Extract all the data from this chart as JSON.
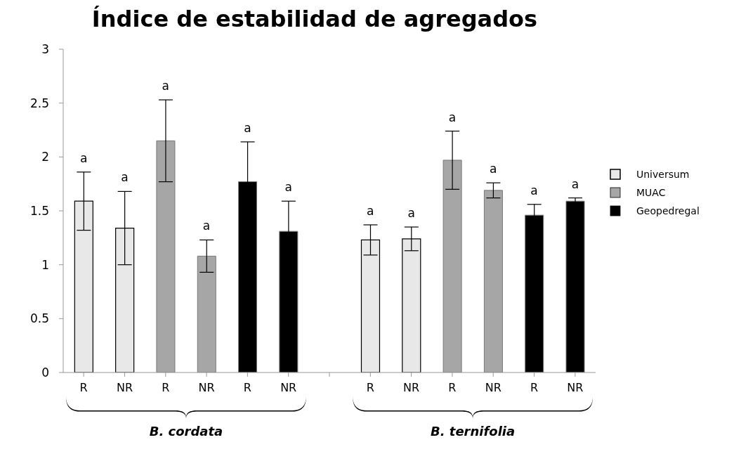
{
  "chart_data": {
    "type": "bar",
    "title": "Índice de estabilidad de agregados",
    "stacked": true,
    "categories": [
      "R",
      "NR",
      "R",
      "NR",
      "R",
      "NR",
      null,
      "R",
      "NR",
      "R",
      "NR",
      "R",
      "NR"
    ],
    "series": [
      {
        "name": "Universum",
        "color": "#e8e8e8",
        "values": [
          1.59,
          1.34,
          null,
          null,
          null,
          null,
          null,
          1.23,
          1.24,
          null,
          null,
          null,
          null
        ],
        "errors": [
          0.27,
          0.34,
          null,
          null,
          null,
          null,
          null,
          0.14,
          0.11,
          null,
          null,
          null,
          null
        ]
      },
      {
        "name": "MUAC",
        "color": "#a6a6a6",
        "values": [
          null,
          null,
          2.15,
          1.08,
          null,
          null,
          null,
          null,
          null,
          1.97,
          1.69,
          null,
          null
        ],
        "errors": [
          null,
          null,
          0.38,
          0.15,
          null,
          null,
          null,
          null,
          null,
          0.27,
          0.07,
          null,
          null
        ]
      },
      {
        "name": "Geopedregal",
        "color": "#000000",
        "values": [
          null,
          null,
          null,
          null,
          1.77,
          1.31,
          null,
          null,
          null,
          null,
          null,
          1.46,
          1.59
        ],
        "errors": [
          null,
          null,
          null,
          null,
          0.37,
          0.28,
          null,
          null,
          null,
          null,
          null,
          0.1,
          0.03
        ]
      }
    ],
    "ylim": [
      0,
      3
    ],
    "yticks": [
      0,
      0.5,
      1,
      1.5,
      2,
      2.5,
      3
    ],
    "grid": false,
    "legend": "right",
    "annotations": [
      "a",
      "a",
      "a",
      "a",
      "a",
      "a",
      "a",
      "a",
      "a",
      "a",
      "a",
      "a",
      "B. cordata",
      "B. ternifolia"
    ]
  }
}
